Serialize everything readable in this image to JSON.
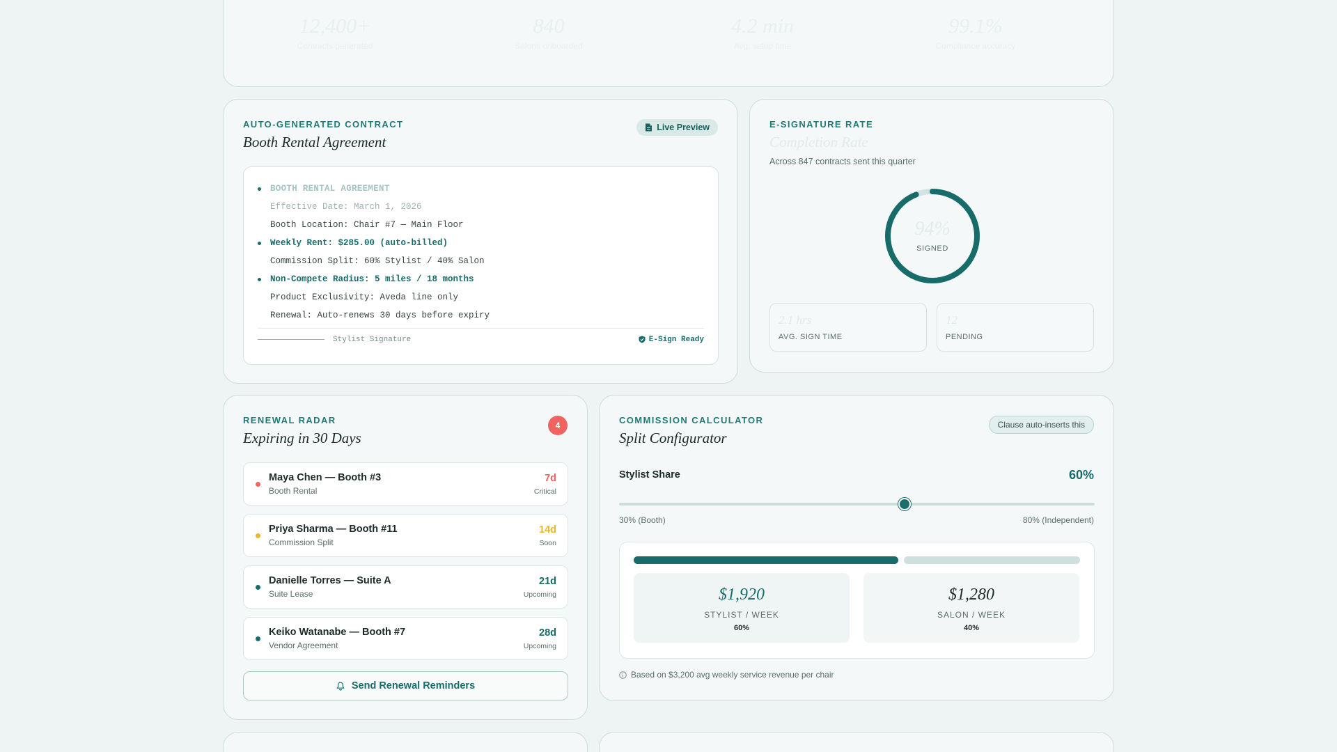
{
  "stats": [
    {
      "value": "12,400+",
      "label": "Contracts generated"
    },
    {
      "value": "840",
      "label": "Salons onboarded"
    },
    {
      "value": "4.2 min",
      "label": "Avg. setup time"
    },
    {
      "value": "99.1%",
      "label": "Compliance accuracy"
    }
  ],
  "contract": {
    "eyebrow": "AUTO-GENERATED CONTRACT",
    "title": "Booth Rental Agreement",
    "live_preview_label": "Live Preview",
    "lines": [
      {
        "text": "BOOTH RENTAL AGREEMENT",
        "style": "heading",
        "dot": true
      },
      {
        "text": "Effective Date: March 1, 2026",
        "style": "faded",
        "dot": false
      },
      {
        "text": "Booth Location: Chair #7 — Main Floor",
        "style": "normal",
        "dot": false
      },
      {
        "text": "Weekly Rent: $285.00 (auto-billed)",
        "style": "strong",
        "dot": true
      },
      {
        "text": "Commission Split: 60% Stylist / 40% Salon",
        "style": "normal",
        "dot": false
      },
      {
        "text": "Non-Compete Radius: 5 miles / 18 months",
        "style": "strong",
        "dot": true
      },
      {
        "text": "Product Exclusivity: Aveda line only",
        "style": "normal",
        "dot": false
      },
      {
        "text": "Renewal: Auto-renews 30 days before expiry",
        "style": "normal",
        "dot": false
      }
    ],
    "signature_label": "Stylist Signature",
    "esign_label": "E-Sign Ready"
  },
  "esign": {
    "eyebrow": "E-SIGNATURE RATE",
    "title": "Completion Rate",
    "subtitle": "Across 847 contracts sent this quarter",
    "percent_text": "94%",
    "percent_value": 0.94,
    "ring_label": "SIGNED",
    "avg_time_value": "2.1 hrs",
    "avg_time_label": "AVG. SIGN TIME",
    "pending_value": "12",
    "pending_label": "PENDING"
  },
  "renewal": {
    "eyebrow": "RENEWAL RADAR",
    "title": "Expiring in 30 Days",
    "count": "4",
    "items": [
      {
        "name": "Maya Chen — Booth #3",
        "type": "Booth Rental",
        "days": "7d",
        "status": "Critical",
        "color": "#ef6461"
      },
      {
        "name": "Priya Sharma — Booth #11",
        "type": "Commission Split",
        "days": "14d",
        "status": "Soon",
        "color": "#e9b72a"
      },
      {
        "name": "Danielle Torres — Suite A",
        "type": "Suite Lease",
        "days": "21d",
        "status": "Upcoming",
        "color": "#176b69"
      },
      {
        "name": "Keiko Watanabe — Booth #7",
        "type": "Vendor Agreement",
        "days": "28d",
        "status": "Upcoming",
        "color": "#176b69"
      }
    ],
    "send_label": "Send Renewal Reminders"
  },
  "commission": {
    "eyebrow": "COMMISSION CALCULATOR",
    "title": "Split Configurator",
    "clause_label": "Clause auto-inserts this",
    "share_label": "Stylist Share",
    "share_pct_text": "60%",
    "slider_min_value": 30,
    "slider_max_value": 80,
    "slider_value": 60,
    "slider_min_label": "30% (Booth)",
    "slider_max_label": "80% (Independent)",
    "stylist_amount": "$1,920",
    "stylist_label": "STYLIST / WEEK",
    "stylist_pct": "60%",
    "salon_amount": "$1,280",
    "salon_label": "SALON / WEEK",
    "salon_pct": "40%",
    "stylist_share_fraction": 0.6,
    "basis_note": "Based on $3,200 avg weekly service revenue per chair"
  },
  "colors": {
    "accent": "#176b69",
    "critical": "#ef6461",
    "warning": "#e9b72a",
    "background": "#edf4f3"
  }
}
